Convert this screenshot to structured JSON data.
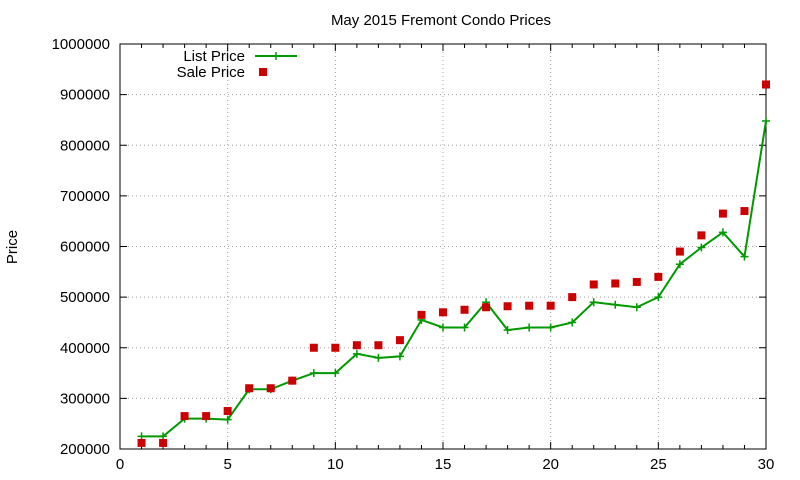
{
  "chart_data": {
    "type": "line",
    "title": "May 2015 Fremont Condo Prices",
    "xlabel": "",
    "ylabel": "Price",
    "xlim": [
      0,
      30
    ],
    "ylim": [
      200000,
      1000000
    ],
    "x_ticks": [
      "0",
      "5",
      "10",
      "15",
      "20",
      "25",
      "30"
    ],
    "y_ticks": [
      "200000",
      "300000",
      "400000",
      "500000",
      "600000",
      "700000",
      "800000",
      "900000",
      "1000000"
    ],
    "grid": true,
    "legend_position": "top-left",
    "series": [
      {
        "name": "List Price",
        "style": "line-with-plus-markers",
        "color": "#009900",
        "x": [
          1,
          2,
          3,
          4,
          5,
          6,
          7,
          8,
          9,
          10,
          11,
          12,
          13,
          14,
          15,
          16,
          17,
          18,
          19,
          20,
          21,
          22,
          23,
          24,
          25,
          26,
          27,
          28,
          29,
          30
        ],
        "values": [
          225000,
          225000,
          260000,
          260000,
          258000,
          318000,
          318000,
          335000,
          350000,
          350000,
          388000,
          380000,
          383000,
          455000,
          440000,
          440000,
          490000,
          435000,
          440000,
          440000,
          450000,
          490000,
          485000,
          480000,
          500000,
          565000,
          598000,
          628000,
          580000,
          848000
        ]
      },
      {
        "name": "Sale Price",
        "style": "square-markers",
        "color": "#cc0000",
        "x": [
          1,
          2,
          3,
          4,
          5,
          6,
          7,
          8,
          9,
          10,
          11,
          12,
          13,
          14,
          15,
          16,
          17,
          18,
          19,
          20,
          21,
          22,
          23,
          24,
          25,
          26,
          27,
          28,
          29,
          30
        ],
        "values": [
          212000,
          212000,
          265000,
          265000,
          275000,
          320000,
          320000,
          335000,
          400000,
          400000,
          405000,
          405000,
          415000,
          465000,
          470000,
          475000,
          480000,
          482000,
          483000,
          483000,
          500000,
          525000,
          527000,
          530000,
          540000,
          590000,
          622000,
          665000,
          670000,
          920000
        ]
      }
    ]
  }
}
